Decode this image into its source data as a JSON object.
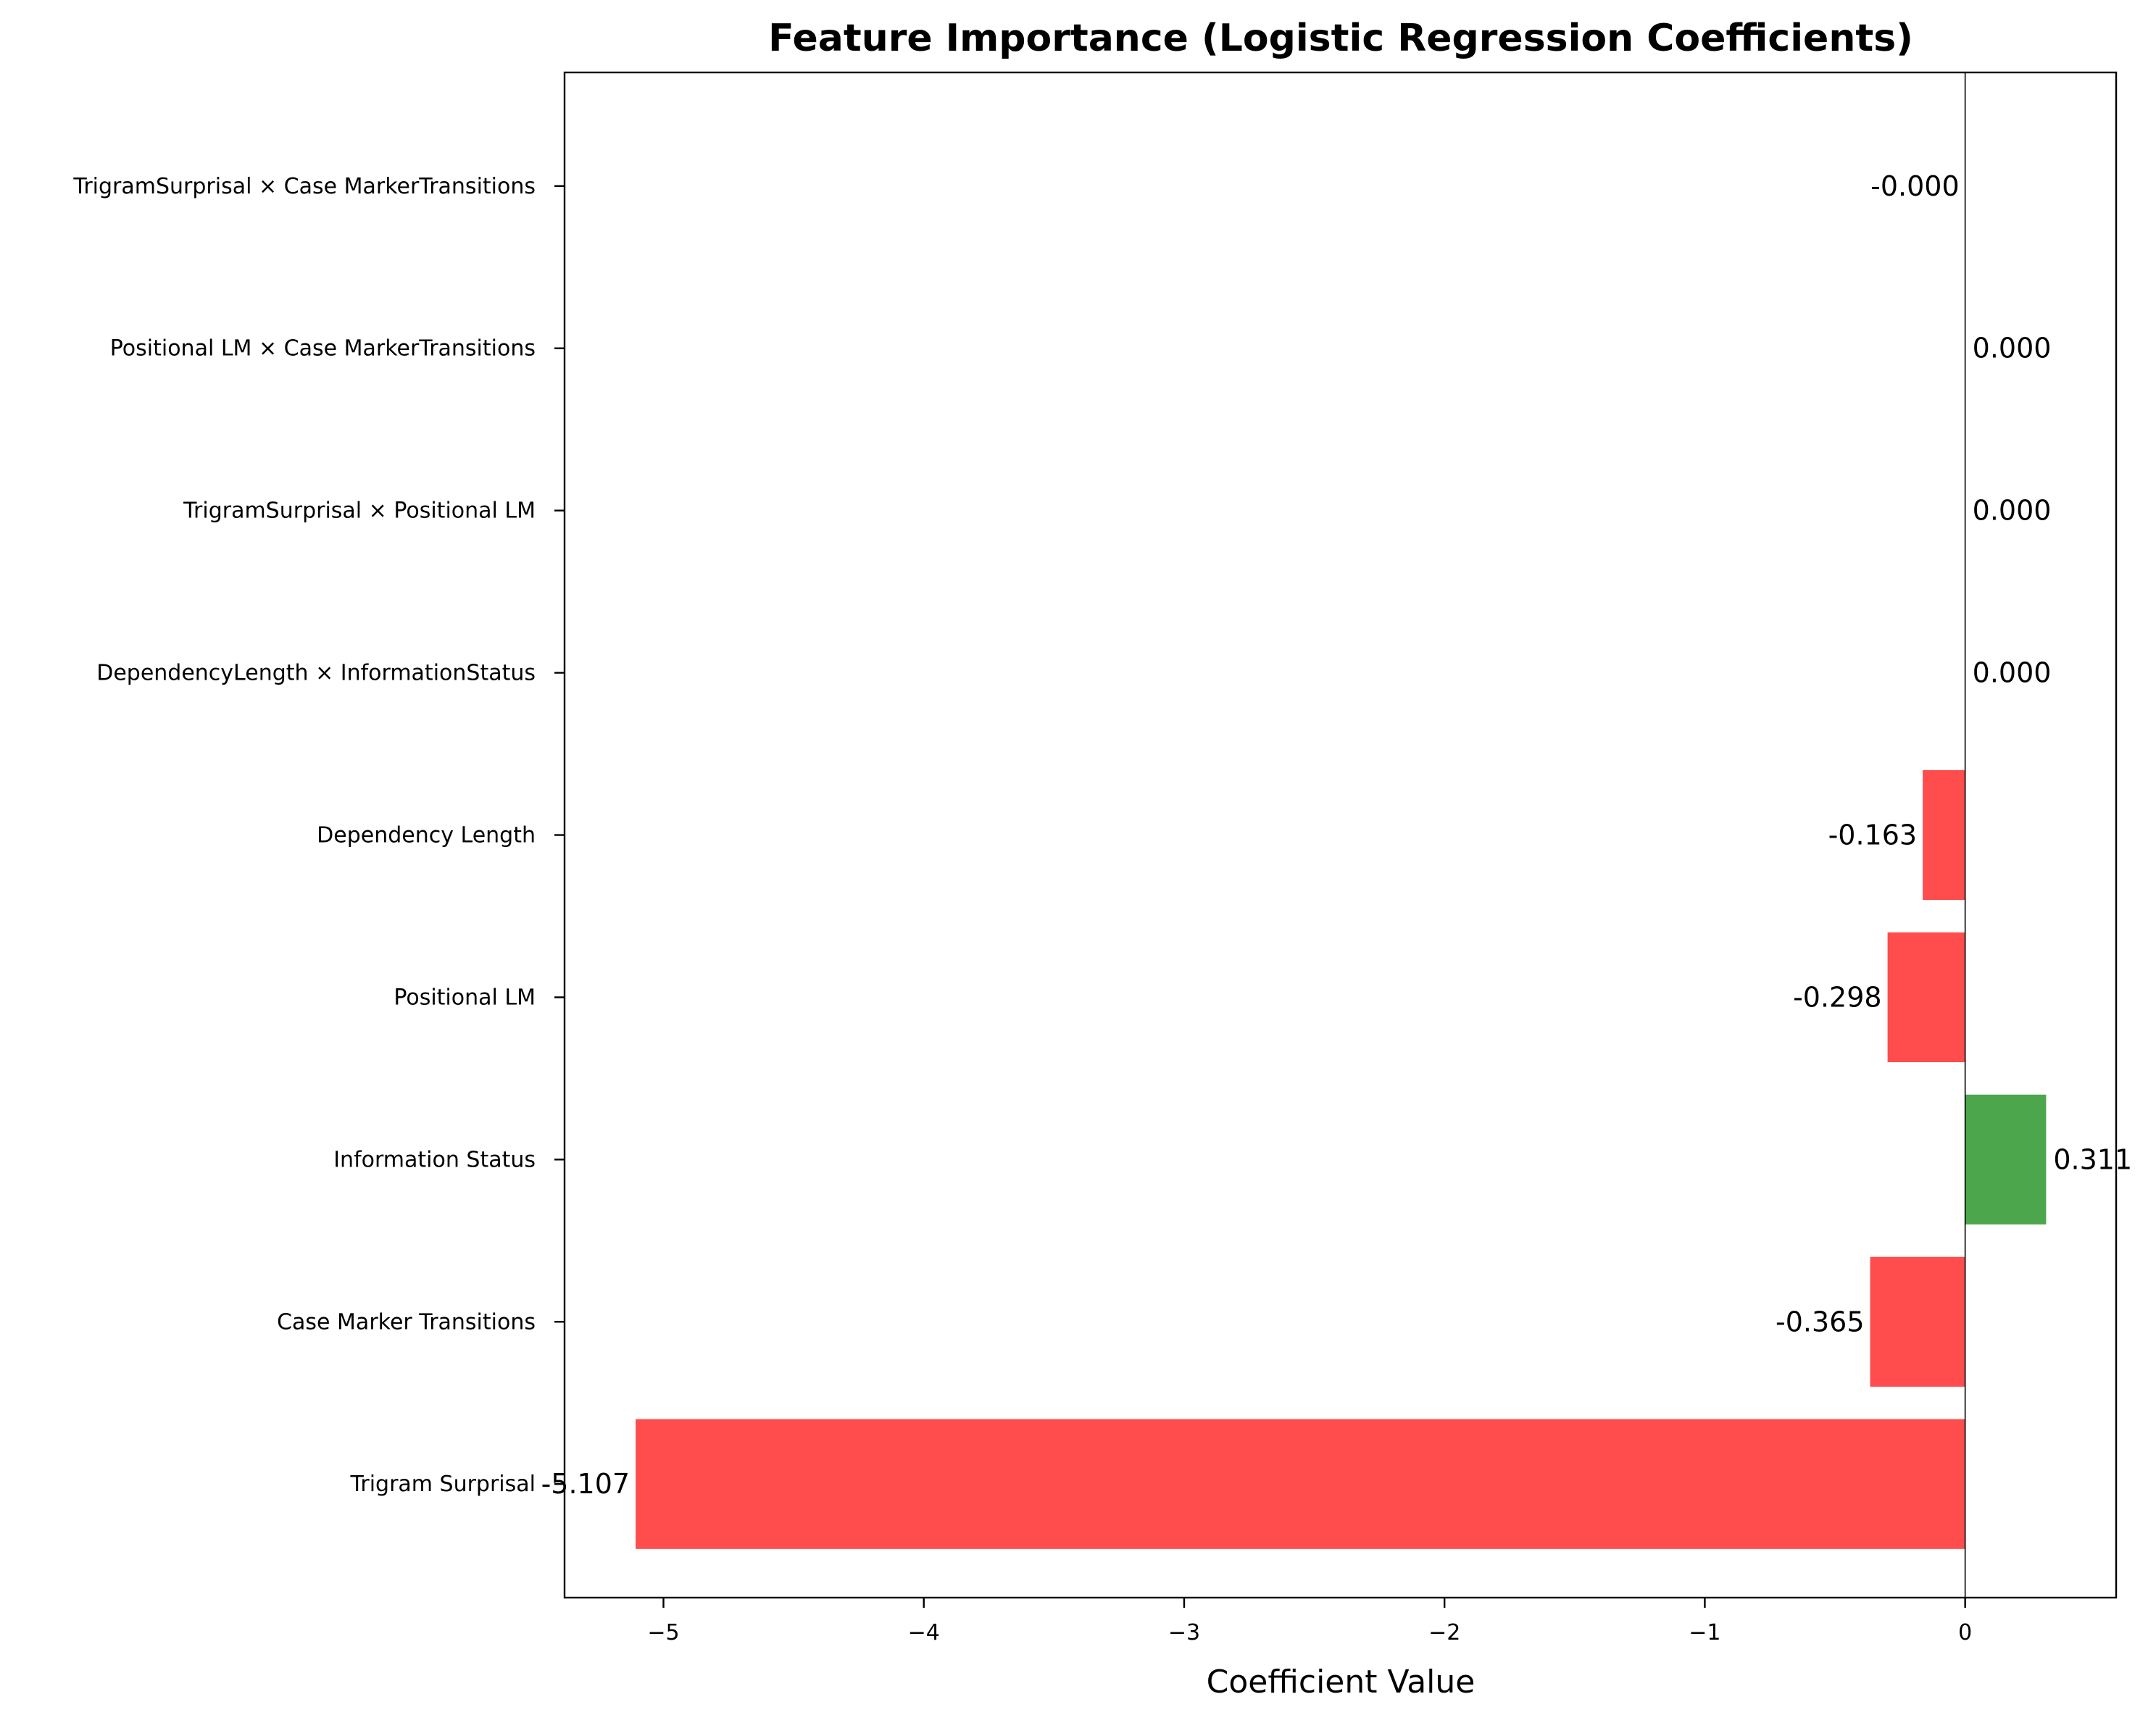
{
  "chart_data": {
    "type": "bar",
    "orientation": "horizontal",
    "title": "Feature Importance (Logistic Regression Coefficients)",
    "xlabel": "Coefficient Value",
    "ylabel": "",
    "categories": [
      "Trigram Surprisal",
      "Case Marker Transitions",
      "Information Status",
      "Positional LM",
      "Dependency Length",
      "DependencyLength × InformationStatus",
      "TrigramSurprisal × Positional LM",
      "Positional LM × Case MarkerTransitions",
      "TrigramSurprisal × Case MarkerTransitions"
    ],
    "values": [
      -5.107,
      -0.365,
      0.311,
      -0.298,
      -0.163,
      0.0,
      0.0,
      0.0,
      -0.0
    ],
    "value_labels": [
      "-5.107",
      "-0.365",
      "0.311",
      "-0.298",
      "-0.163",
      "0.000",
      "0.000",
      "0.000",
      "-0.000"
    ],
    "xticks": [
      -5,
      -4,
      -3,
      -2,
      -1,
      0
    ],
    "xtick_labels": [
      "−5",
      "−4",
      "−3",
      "−2",
      "−1",
      "0"
    ],
    "xlim": [
      -5.38,
      0.58
    ],
    "ylim": [
      -0.7,
      8.7
    ],
    "grid": false,
    "legend": "none",
    "zero_line": true,
    "colors": {
      "positive": "#4ca64c",
      "negative": "#ff4c4c",
      "axis": "#000000"
    }
  }
}
